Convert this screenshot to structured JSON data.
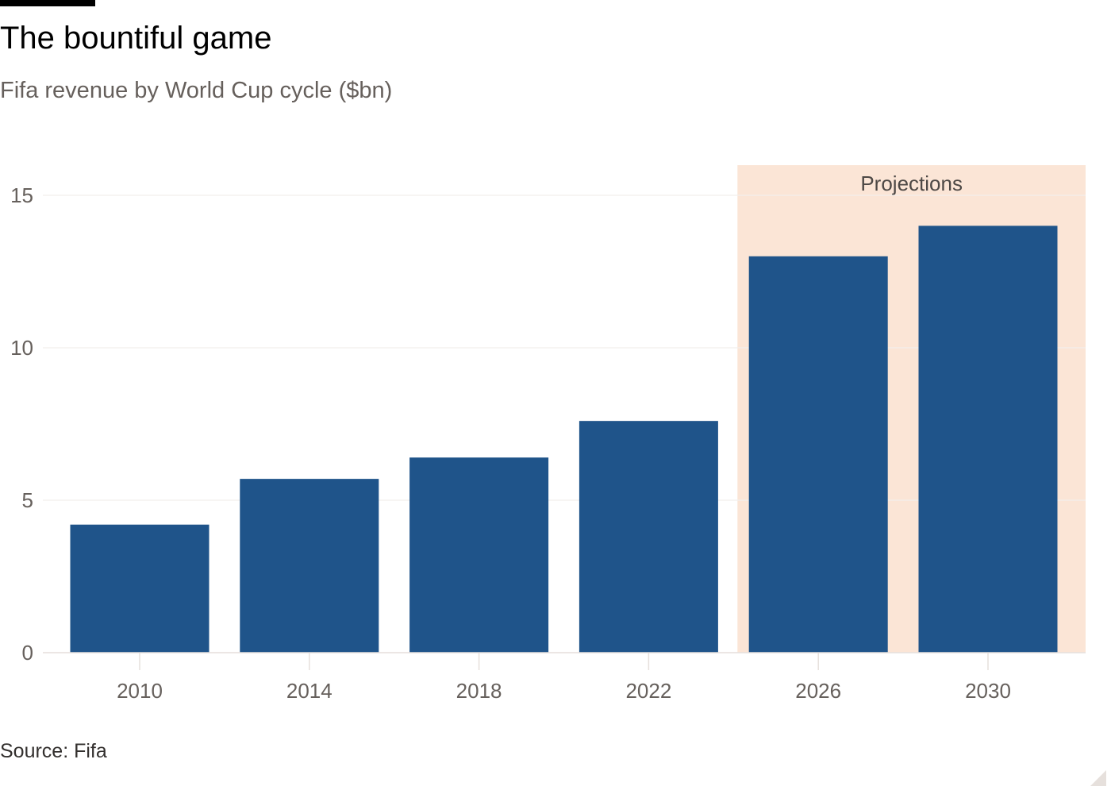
{
  "header": {
    "title": "The bountiful game",
    "subtitle": "Fifa revenue by World Cup cycle ($bn)"
  },
  "footer": {
    "source": "Source: Fifa"
  },
  "colors": {
    "bar": "#1f548a",
    "projection_band": "#fbe5d6",
    "gridline": "#f2efec",
    "tick_text": "#66605c",
    "annotation_text": "#4d4845"
  },
  "chart_data": {
    "type": "bar",
    "title": "The bountiful game",
    "subtitle": "Fifa revenue by World Cup cycle ($bn)",
    "xlabel": "",
    "ylabel": "",
    "categories": [
      "2010",
      "2014",
      "2018",
      "2022",
      "2026",
      "2030"
    ],
    "values": [
      4.2,
      5.7,
      6.4,
      7.6,
      13.0,
      14.0
    ],
    "ylim": [
      0,
      15.0
    ],
    "yticks": [
      0,
      5,
      10,
      15
    ],
    "grid": true,
    "legend": "none",
    "annotations": [
      {
        "text": "Projections",
        "shaded_categories": [
          "2026",
          "2030"
        ]
      }
    ]
  }
}
